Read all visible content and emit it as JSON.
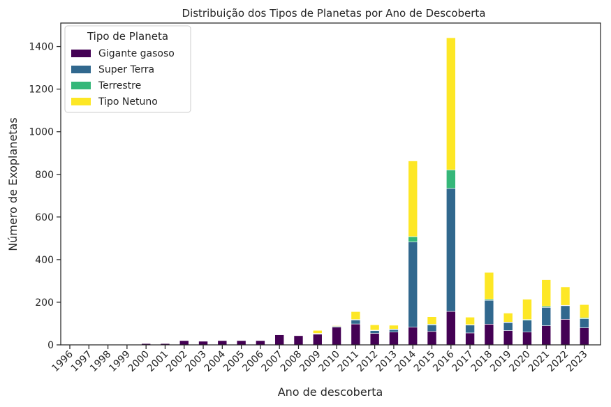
{
  "chart_data": {
    "type": "bar",
    "stacked": true,
    "title": "Distribuição dos Tipos de Planetas por Ano de Descoberta",
    "xlabel": "Ano de descoberta",
    "ylabel": "Número de Exoplanetas",
    "ylim": [
      0,
      1510
    ],
    "yticks": [
      0,
      200,
      400,
      600,
      800,
      1000,
      1200,
      1400
    ],
    "grid": false,
    "legend": {
      "title": "Tipo de Planeta",
      "placement": "top-left"
    },
    "categories": [
      "1996",
      "1997",
      "1998",
      "1999",
      "2000",
      "2001",
      "2002",
      "2003",
      "2004",
      "2005",
      "2006",
      "2007",
      "2008",
      "2009",
      "2010",
      "2011",
      "2012",
      "2013",
      "2014",
      "2015",
      "2016",
      "2017",
      "2018",
      "2019",
      "2020",
      "2021",
      "2022",
      "2023"
    ],
    "series": [
      {
        "name": "Gigante gasoso",
        "color": "#440154",
        "values": [
          1,
          1,
          1,
          1,
          6,
          6,
          20,
          17,
          20,
          20,
          20,
          47,
          43,
          50,
          83,
          98,
          54,
          60,
          83,
          63,
          157,
          56,
          97,
          67,
          60,
          90,
          120,
          80
        ]
      },
      {
        "name": "Super Terra",
        "color": "#31688e",
        "values": [
          0,
          0,
          0,
          0,
          0,
          0,
          0,
          0,
          0,
          0,
          0,
          0,
          0,
          3,
          4,
          19,
          13,
          12,
          400,
          31,
          577,
          37,
          112,
          38,
          56,
          86,
          64,
          43
        ]
      },
      {
        "name": "Terrestre",
        "color": "#35b779",
        "values": [
          0,
          0,
          0,
          0,
          0,
          0,
          0,
          0,
          0,
          0,
          0,
          0,
          0,
          1,
          0,
          2,
          2,
          2,
          25,
          3,
          87,
          2,
          5,
          2,
          3,
          5,
          2,
          4
        ]
      },
      {
        "name": "Tipo Netuno",
        "color": "#fde725",
        "values": [
          0,
          0,
          0,
          0,
          0,
          0,
          0,
          0,
          0,
          0,
          0,
          0,
          0,
          14,
          3,
          37,
          25,
          18,
          355,
          35,
          620,
          35,
          126,
          42,
          95,
          125,
          86,
          62
        ]
      }
    ]
  }
}
